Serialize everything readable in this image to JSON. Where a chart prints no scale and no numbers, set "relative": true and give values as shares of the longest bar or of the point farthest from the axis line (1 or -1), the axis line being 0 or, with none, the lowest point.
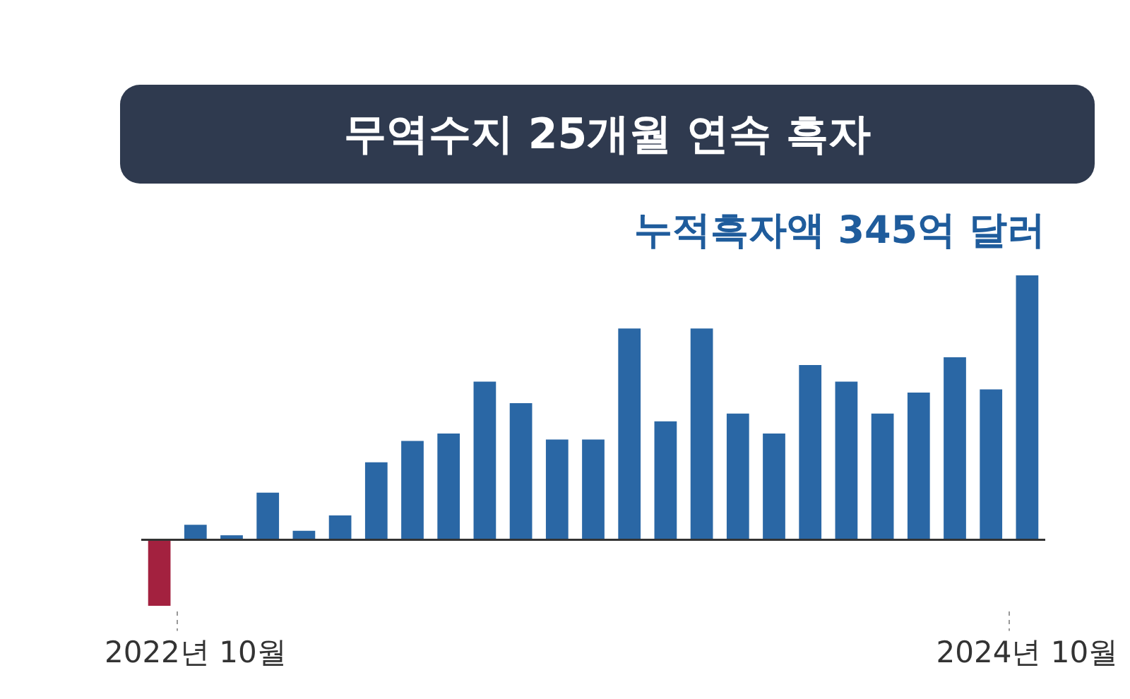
{
  "chart_data": {
    "type": "bar",
    "title": "무역수지 25개월 연속 흑자",
    "subtitle": "누적흑자액 345억 달러",
    "relative": true,
    "grid": false,
    "categories": [
      null,
      "2022년 10월",
      null,
      null,
      null,
      null,
      null,
      null,
      null,
      null,
      null,
      null,
      null,
      null,
      null,
      null,
      null,
      null,
      null,
      null,
      null,
      null,
      null,
      null,
      "2024년 10월"
    ],
    "values": [
      -0.25,
      0.057,
      0.017,
      0.178,
      0.034,
      0.092,
      0.293,
      0.374,
      0.402,
      0.598,
      0.517,
      0.379,
      0.379,
      0.799,
      0.448,
      0.799,
      0.477,
      0.402,
      0.661,
      0.598,
      0.477,
      0.557,
      0.69,
      0.569,
      1
    ],
    "colors": [
      "#a3213f",
      "#2a67a5",
      "#2a67a5",
      "#2a67a5",
      "#2a67a5",
      "#2a67a5",
      "#2a67a5",
      "#2a67a5",
      "#2a67a5",
      "#2a67a5",
      "#2a67a5",
      "#2a67a5",
      "#2a67a5",
      "#2a67a5",
      "#2a67a5",
      "#2a67a5",
      "#2a67a5",
      "#2a67a5",
      "#2a67a5",
      "#2a67a5",
      "#2a67a5",
      "#2a67a5",
      "#2a67a5",
      "#2a67a5",
      "#2a67a5"
    ]
  }
}
